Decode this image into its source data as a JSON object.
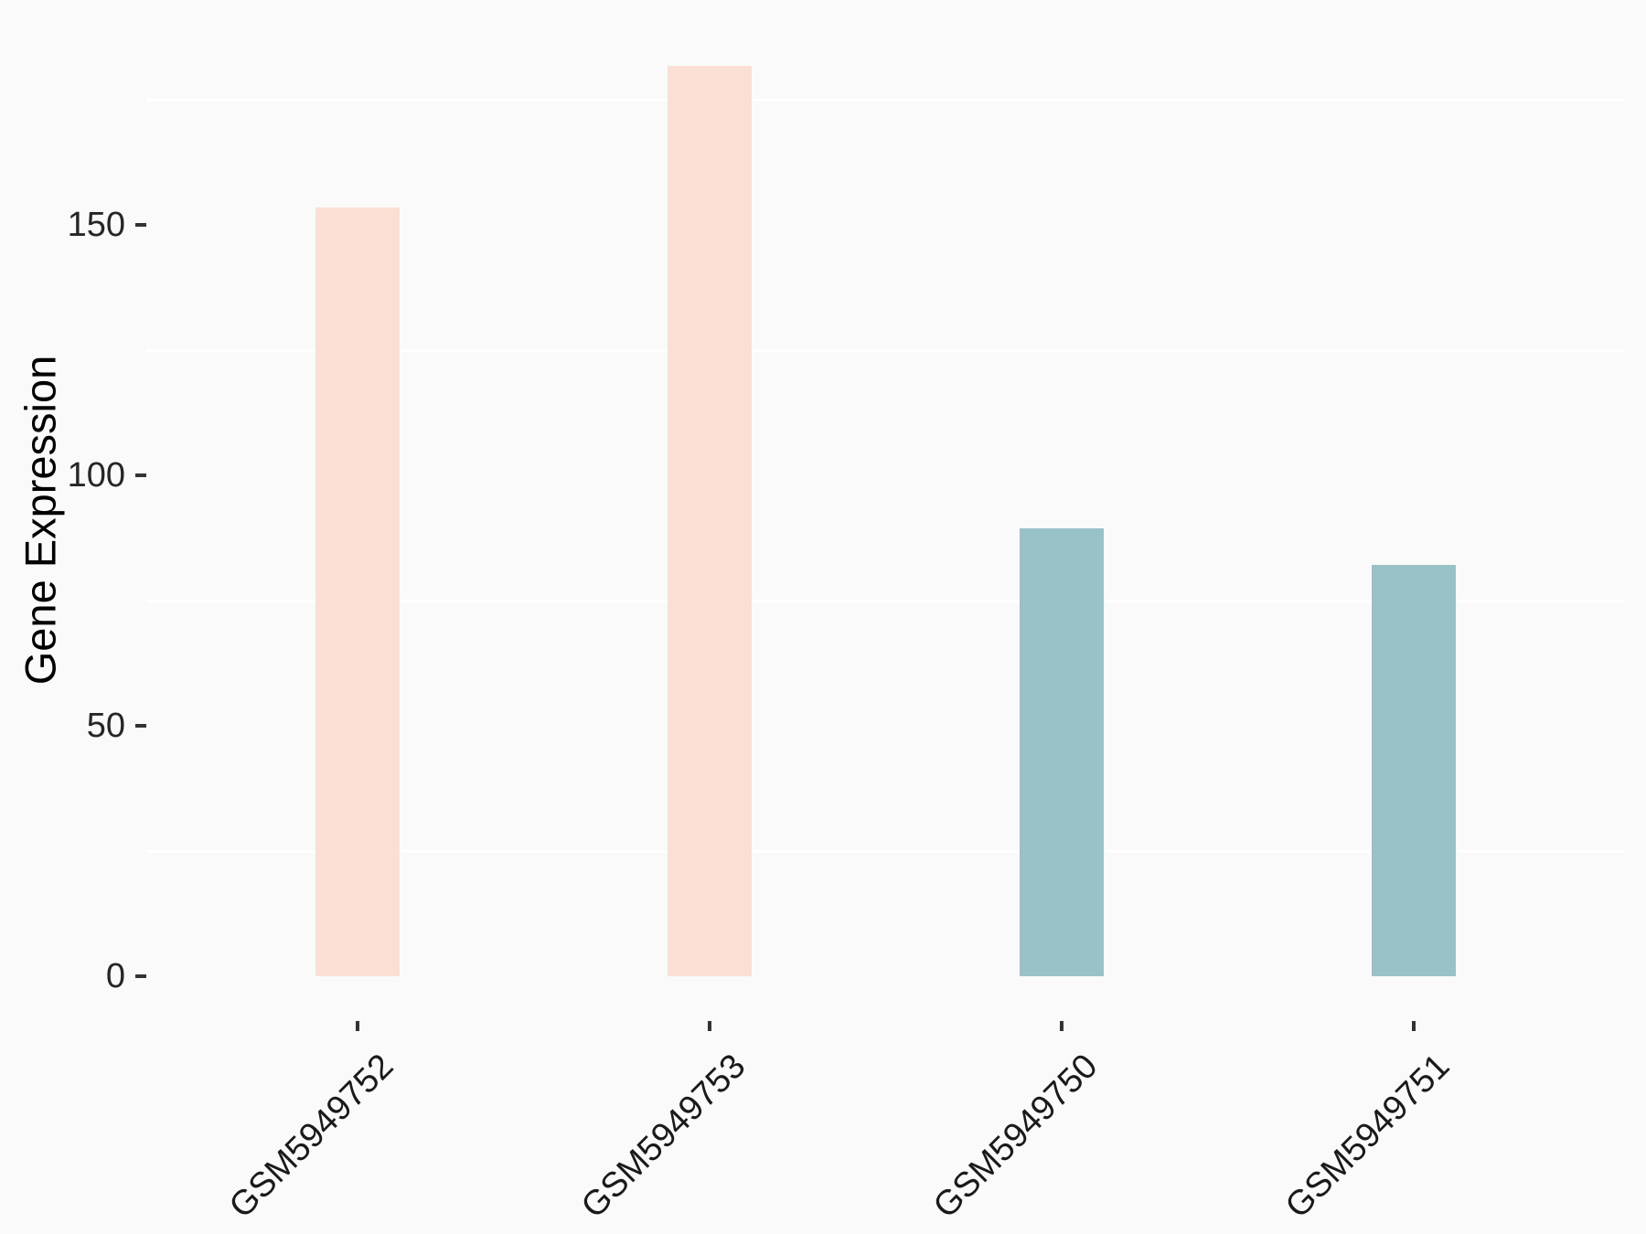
{
  "figure": {
    "background_color": "#FAFAFA",
    "gridline_color": "#FFFFFF",
    "tick_color": "#333333",
    "axis_text_color": "#1A1A1A"
  },
  "chart_data": {
    "type": "bar",
    "title": "",
    "xlabel": "",
    "ylabel": "Gene Expression",
    "categories": [
      "GSM5949752",
      "GSM5949753",
      "GSM5949750",
      "GSM5949751"
    ],
    "values": [
      153.5,
      181.8,
      89.4,
      82.1
    ],
    "bar_colors": [
      "#FBDFD4",
      "#FBDFD4",
      "#99C2C6",
      "#99C2C6"
    ],
    "color_groups": [
      {
        "color": "#FBDFD4",
        "samples": [
          "GSM5949752",
          "GSM5949753"
        ]
      },
      {
        "color": "#99C2C6",
        "samples": [
          "GSM5949750",
          "GSM5949751"
        ]
      }
    ],
    "y_ticks": [
      0,
      50,
      100,
      150
    ],
    "y_minor_gridlines": [
      25,
      75,
      125,
      175
    ],
    "ylim": [
      0,
      191
    ],
    "x_tick_angle_deg": 45,
    "grid": "minor horizontal white lines only",
    "legend_position": "none"
  }
}
